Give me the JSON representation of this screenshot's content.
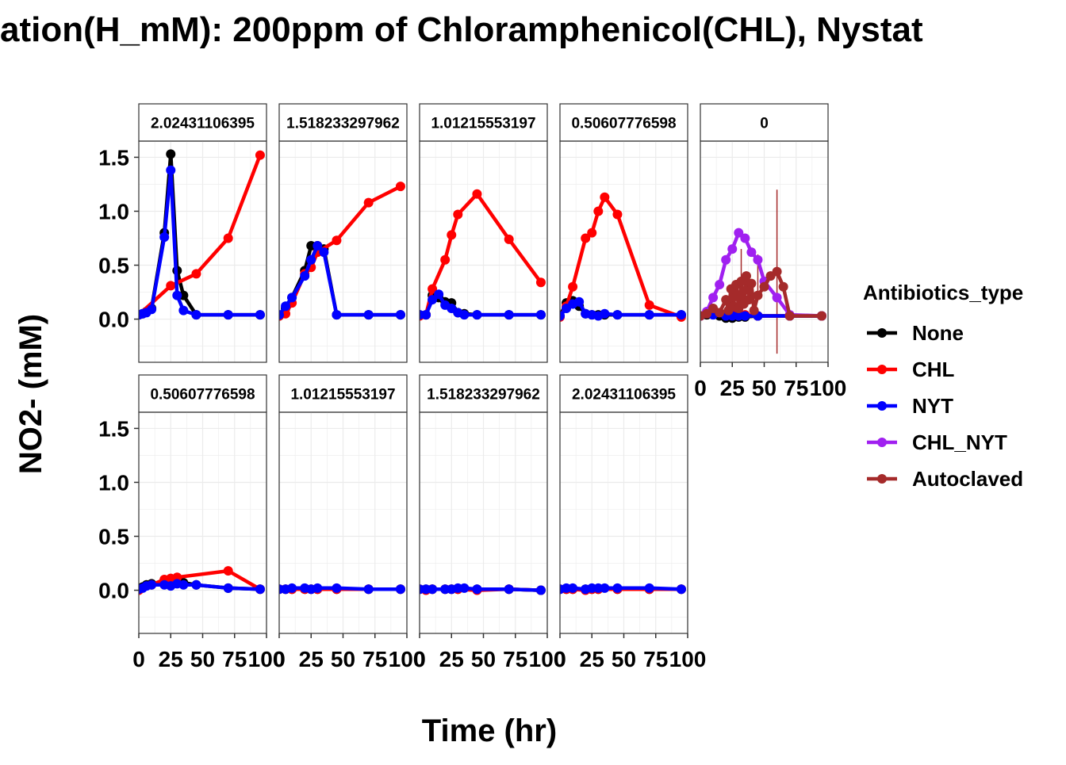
{
  "chart_data": {
    "type": "line",
    "title": "ation(H_mM): 200ppm of Chloramphenicol(CHL), Nystat",
    "xlabel": "Time (hr)",
    "ylabel": "NO2- (mM)",
    "xlim": [
      0,
      100
    ],
    "ylim": [
      -0.4,
      1.65
    ],
    "x_ticks": [
      0,
      25,
      50,
      75,
      100
    ],
    "x_tick_labels": [
      "0",
      "25",
      "50",
      "75",
      "100"
    ],
    "y_ticks": [
      0,
      0.5,
      1,
      1.5
    ],
    "y_tick_labels": [
      "0.0",
      "0.5",
      "1.0",
      "1.5"
    ],
    "grid": true,
    "legend": {
      "title": "Antibiotics_type",
      "position": "right",
      "entries": [
        {
          "label": "None",
          "color": "#000000"
        },
        {
          "label": "CHL",
          "color": "#ff0000"
        },
        {
          "label": "NYT",
          "color": "#0000ff"
        },
        {
          "label": "CHL_NYT",
          "color": "#a020f0"
        },
        {
          "label": "Autoclaved",
          "color": "#a52a2a"
        }
      ]
    },
    "panels": [
      {
        "strip": "2.02431106395",
        "row": 0,
        "col": 0,
        "show_x_axis": false,
        "series": [
          {
            "name": "None",
            "x": [
              0,
              3,
              6,
              10,
              20,
              25,
              30,
              35,
              45,
              70,
              95
            ],
            "y": [
              0.04,
              0.05,
              0.07,
              0.1,
              0.8,
              1.53,
              0.45,
              0.22,
              0.04,
              0.04,
              0.04
            ]
          },
          {
            "name": "CHL",
            "x": [
              0,
              25,
              45,
              70,
              95
            ],
            "y": [
              0.04,
              0.31,
              0.42,
              0.75,
              1.52
            ]
          },
          {
            "name": "NYT",
            "x": [
              0,
              3,
              6,
              10,
              20,
              25,
              30,
              35,
              45,
              70,
              95
            ],
            "y": [
              0.04,
              0.05,
              0.06,
              0.09,
              0.76,
              1.38,
              0.22,
              0.08,
              0.04,
              0.04,
              0.04
            ]
          }
        ]
      },
      {
        "strip": "1.518233297962",
        "row": 0,
        "col": 1,
        "show_x_axis": false,
        "series": [
          {
            "name": "None",
            "x": [
              0,
              5,
              10,
              20,
              25,
              30,
              35,
              45,
              70,
              95
            ],
            "y": [
              0.03,
              0.1,
              0.2,
              0.45,
              0.68,
              0.68,
              0.65,
              0.04,
              0.04,
              0.04
            ]
          },
          {
            "name": "CHL",
            "x": [
              0,
              5,
              10,
              20,
              25,
              30,
              45,
              70,
              95
            ],
            "y": [
              0.03,
              0.05,
              0.15,
              0.42,
              0.48,
              0.62,
              0.73,
              1.08,
              1.23
            ]
          },
          {
            "name": "NYT",
            "x": [
              0,
              5,
              10,
              20,
              25,
              30,
              35,
              45,
              70,
              95
            ],
            "y": [
              0.04,
              0.12,
              0.2,
              0.4,
              0.55,
              0.68,
              0.62,
              0.04,
              0.04,
              0.04
            ]
          }
        ]
      },
      {
        "strip": "1.01215553197",
        "row": 0,
        "col": 2,
        "show_x_axis": false,
        "series": [
          {
            "name": "None",
            "x": [
              0,
              5,
              10,
              15,
              20,
              25,
              30,
              35,
              45,
              70,
              95
            ],
            "y": [
              0.04,
              0.04,
              0.22,
              0.2,
              0.16,
              0.15,
              0.06,
              0.05,
              0.04,
              0.04,
              0.04
            ]
          },
          {
            "name": "CHL",
            "x": [
              0,
              5,
              10,
              20,
              25,
              30,
              45,
              70,
              95
            ],
            "y": [
              0.03,
              0.04,
              0.28,
              0.55,
              0.78,
              0.97,
              1.16,
              0.74,
              0.34
            ]
          },
          {
            "name": "NYT",
            "x": [
              0,
              5,
              10,
              15,
              20,
              25,
              30,
              35,
              45,
              70,
              95
            ],
            "y": [
              0.04,
              0.04,
              0.18,
              0.23,
              0.13,
              0.1,
              0.06,
              0.04,
              0.04,
              0.04,
              0.04
            ]
          }
        ]
      },
      {
        "strip": "0.50607776598",
        "row": 0,
        "col": 3,
        "show_x_axis": false,
        "series": [
          {
            "name": "None",
            "x": [
              0,
              5,
              10,
              15,
              20,
              25,
              30,
              35,
              45,
              70,
              95
            ],
            "y": [
              0.03,
              0.15,
              0.17,
              0.12,
              0.05,
              0.04,
              0.04,
              0.04,
              0.04,
              0.04,
              0.04
            ]
          },
          {
            "name": "CHL",
            "x": [
              0,
              5,
              10,
              20,
              25,
              30,
              35,
              45,
              70,
              95
            ],
            "y": [
              0.02,
              0.12,
              0.3,
              0.75,
              0.8,
              1.0,
              1.13,
              0.97,
              0.13,
              0.02
            ]
          },
          {
            "name": "NYT",
            "x": [
              0,
              5,
              10,
              15,
              20,
              25,
              30,
              35,
              45,
              70,
              95
            ],
            "y": [
              0.03,
              0.1,
              0.14,
              0.16,
              0.05,
              0.04,
              0.03,
              0.05,
              0.04,
              0.04,
              0.04
            ]
          }
        ]
      },
      {
        "strip": "0",
        "row": 0,
        "col": 4,
        "show_x_axis": true,
        "series": [
          {
            "name": "None",
            "x": [
              0,
              5,
              10,
              15,
              20,
              25,
              30,
              35,
              45,
              70,
              95
            ],
            "y": [
              0.03,
              0.04,
              0.05,
              0.03,
              0.01,
              0.01,
              0.02,
              0.02,
              0.03,
              0.03,
              0.03
            ]
          },
          {
            "name": "CHL",
            "x": [
              0,
              10,
              20,
              25,
              30,
              35,
              45,
              70,
              95
            ],
            "y": [
              0.03,
              0.05,
              0.05,
              0.04,
              0.04,
              0.04,
              0.03,
              0.03,
              0.03
            ]
          },
          {
            "name": "NYT",
            "x": [
              0,
              10,
              20,
              25,
              30,
              35,
              45,
              70,
              95
            ],
            "y": [
              0.03,
              0.04,
              0.03,
              0.03,
              0.03,
              0.03,
              0.03,
              0.03,
              0.03
            ]
          },
          {
            "name": "CHL_NYT",
            "x": [
              0,
              5,
              10,
              15,
              20,
              25,
              30,
              35,
              40,
              45,
              50,
              60,
              70,
              95
            ],
            "y": [
              0.03,
              0.07,
              0.2,
              0.32,
              0.55,
              0.65,
              0.8,
              0.75,
              0.62,
              0.55,
              0.35,
              0.2,
              0.04,
              0.03
            ]
          },
          {
            "name": "Autoclaved",
            "x": [
              0,
              5,
              10,
              15,
              20,
              22,
              24,
              26,
              28,
              30,
              32,
              34,
              36,
              38,
              40,
              42,
              45,
              50,
              55,
              60,
              65,
              70,
              95
            ],
            "y": [
              0.03,
              0.05,
              0.1,
              0.06,
              0.18,
              0.08,
              0.28,
              0.12,
              0.32,
              0.1,
              0.35,
              0.14,
              0.4,
              0.18,
              0.33,
              0.08,
              0.22,
              0.3,
              0.4,
              0.44,
              0.3,
              0.03,
              0.03
            ]
          }
        ],
        "error_bars": [
          {
            "series": "Autoclaved",
            "x": 60,
            "low": -0.32,
            "high": 1.2
          },
          {
            "series": "Autoclaved",
            "x": 45,
            "low": 0.2,
            "high": 0.6
          },
          {
            "series": "Autoclaved",
            "x": 32,
            "low": 0.15,
            "high": 0.65
          }
        ]
      },
      {
        "strip": "0.50607776598",
        "row": 1,
        "col": 0,
        "show_x_axis": true,
        "series": [
          {
            "name": "None",
            "x": [
              0,
              3,
              6,
              10,
              20,
              25,
              30,
              35,
              45,
              70,
              95
            ],
            "y": [
              0.01,
              0.03,
              0.05,
              0.06,
              0.07,
              0.07,
              0.08,
              0.07,
              0.05,
              0.02,
              0.01
            ]
          },
          {
            "name": "CHL",
            "x": [
              0,
              10,
              20,
              25,
              30,
              70,
              95
            ],
            "y": [
              0.0,
              0.05,
              0.1,
              0.11,
              0.12,
              0.18,
              0.01
            ]
          },
          {
            "name": "NYT",
            "x": [
              0,
              3,
              6,
              10,
              20,
              25,
              30,
              35,
              45,
              70,
              95
            ],
            "y": [
              0.01,
              0.02,
              0.04,
              0.05,
              0.05,
              0.04,
              0.06,
              0.05,
              0.05,
              0.02,
              0.01
            ]
          }
        ]
      },
      {
        "strip": "1.01215553197",
        "row": 1,
        "col": 1,
        "show_x_axis": true,
        "series": [
          {
            "name": "None",
            "x": [
              0,
              5,
              10,
              20,
              25,
              30,
              45,
              70,
              95
            ],
            "y": [
              0.01,
              0.01,
              0.01,
              0.01,
              0.01,
              0.01,
              0.01,
              0.01,
              0.01
            ]
          },
          {
            "name": "CHL",
            "x": [
              0,
              5,
              10,
              20,
              25,
              30,
              45,
              70,
              95
            ],
            "y": [
              0.01,
              0.01,
              0.01,
              0.01,
              0.01,
              0.01,
              0.01,
              0.01,
              0.01
            ]
          },
          {
            "name": "NYT",
            "x": [
              0,
              5,
              10,
              20,
              25,
              30,
              45,
              70,
              95
            ],
            "y": [
              0.01,
              0.01,
              0.02,
              0.02,
              0.01,
              0.02,
              0.02,
              0.01,
              0.01
            ]
          }
        ]
      },
      {
        "strip": "1.518233297962",
        "row": 1,
        "col": 2,
        "show_x_axis": true,
        "series": [
          {
            "name": "None",
            "x": [
              0,
              5,
              10,
              20,
              25,
              30,
              45,
              70,
              95
            ],
            "y": [
              0.01,
              0.01,
              0.01,
              0.01,
              0.01,
              0.01,
              0.01,
              0.01,
              0.0
            ]
          },
          {
            "name": "CHL",
            "x": [
              0,
              5,
              10,
              20,
              25,
              30,
              45,
              70,
              95
            ],
            "y": [
              0.01,
              0.0,
              0.01,
              0.01,
              0.01,
              0.01,
              0.0,
              0.01,
              0.0
            ]
          },
          {
            "name": "NYT",
            "x": [
              0,
              5,
              10,
              20,
              25,
              30,
              35,
              45,
              70,
              95
            ],
            "y": [
              0.01,
              0.01,
              0.01,
              0.01,
              0.01,
              0.02,
              0.02,
              0.01,
              0.01,
              0.0
            ]
          }
        ]
      },
      {
        "strip": "2.02431106395",
        "row": 1,
        "col": 3,
        "show_x_axis": true,
        "series": [
          {
            "name": "None",
            "x": [
              0,
              5,
              10,
              20,
              25,
              30,
              45,
              70,
              95
            ],
            "y": [
              0.01,
              0.01,
              0.01,
              0.01,
              0.01,
              0.01,
              0.01,
              0.01,
              0.01
            ]
          },
          {
            "name": "CHL",
            "x": [
              0,
              5,
              10,
              20,
              25,
              30,
              45,
              70,
              95
            ],
            "y": [
              0.01,
              0.01,
              0.01,
              0.0,
              0.01,
              0.01,
              0.01,
              0.01,
              0.01
            ]
          },
          {
            "name": "NYT",
            "x": [
              0,
              5,
              10,
              20,
              25,
              30,
              35,
              45,
              70,
              95
            ],
            "y": [
              0.01,
              0.02,
              0.02,
              0.01,
              0.02,
              0.02,
              0.02,
              0.02,
              0.02,
              0.01
            ]
          }
        ]
      }
    ]
  }
}
